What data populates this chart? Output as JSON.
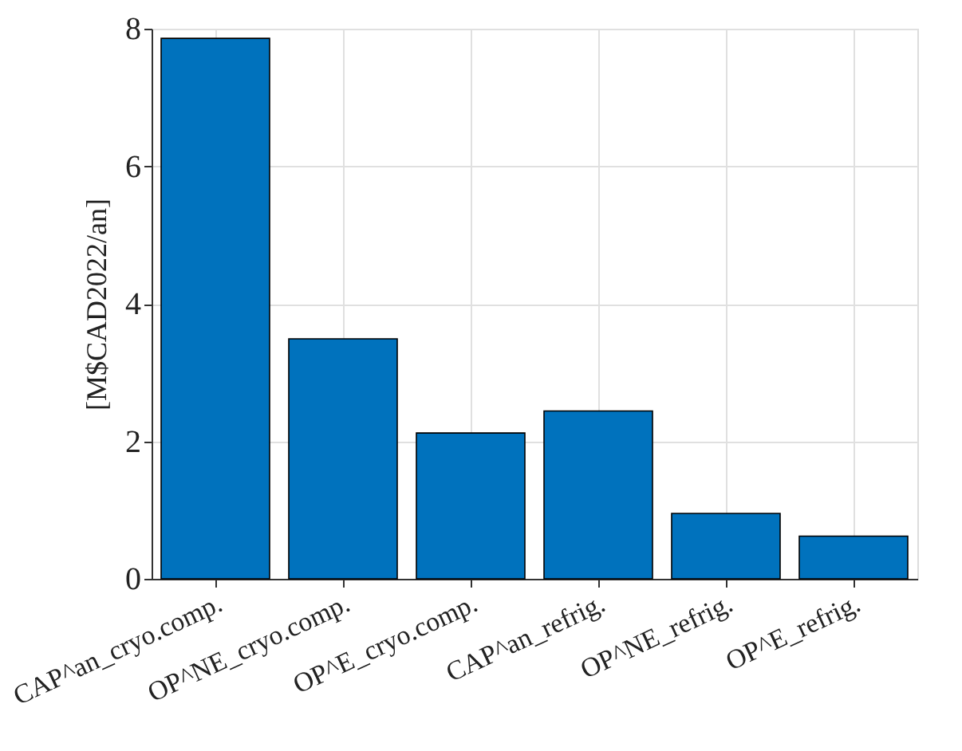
{
  "chart_data": {
    "type": "bar",
    "categories": [
      "CAP^an_cryo.comp.",
      "OP^NE_cryo.comp.",
      "OP^E_cryo.comp.",
      "CAP^an_refrig.",
      "OP^NE_refrig.",
      "OP^E_refrig."
    ],
    "values": [
      7.86,
      3.49,
      2.12,
      2.44,
      0.95,
      0.62
    ],
    "color": "#0072bd",
    "ylabel": "[M$CAD2022/an]",
    "ylim": [
      0,
      8
    ],
    "yticks": [
      0,
      2,
      4,
      6,
      8
    ],
    "grid": true
  }
}
